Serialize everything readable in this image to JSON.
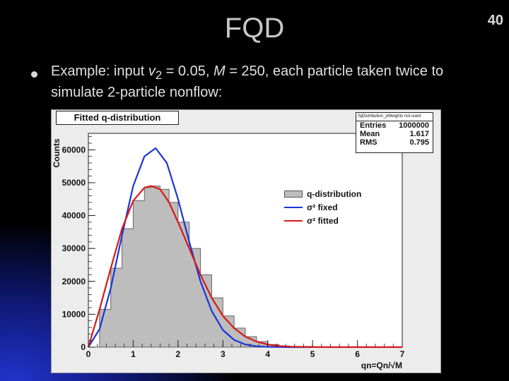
{
  "slide": {
    "title": "FQD",
    "page_number": "40",
    "bullet": {
      "prefix": "Example: input ",
      "var": "v",
      "sub": "2",
      "mid": " = 0.05, ",
      "var2": "M",
      "rest": " = 250, each particle taken twice to simulate 2-particle nonflow:"
    }
  },
  "chart_data": {
    "type": "area",
    "title": "Fitted q-distribution",
    "ylabel": "Counts",
    "xlabel": "qn=Qn/√M",
    "xlim": [
      0,
      7
    ],
    "ylim": [
      0,
      65000
    ],
    "x_ticks": [
      "0",
      "1",
      "2",
      "3",
      "4",
      "5",
      "6",
      "7"
    ],
    "y_ticks": [
      "0",
      "10000",
      "20000",
      "30000",
      "40000",
      "50000",
      "60000"
    ],
    "stats": {
      "header": "fqDistribution_pWeights not used",
      "rows": [
        {
          "k": "Entries",
          "v": "1000000"
        },
        {
          "k": "Mean",
          "v": "1.617"
        },
        {
          "k": "RMS",
          "v": "0.795"
        }
      ]
    },
    "legend_position": "center-right",
    "series": [
      {
        "name": "q-distribution",
        "color": "#bdbdbd",
        "x": [
          0,
          0.25,
          0.5,
          0.75,
          1.0,
          1.25,
          1.4,
          1.6,
          1.8,
          2.0,
          2.25,
          2.5,
          2.75,
          3.0,
          3.25,
          3.5,
          3.75,
          4.0,
          4.25,
          4.5,
          5.0,
          5.5,
          6.0,
          7.0
        ],
        "values": [
          0,
          11500,
          24000,
          36000,
          44500,
          48500,
          49000,
          48000,
          44000,
          38000,
          30000,
          22000,
          15000,
          9500,
          5800,
          3200,
          1700,
          800,
          350,
          150,
          20,
          0,
          0,
          0
        ]
      },
      {
        "name": "σ² fixed",
        "color": "#1a35d8",
        "x": [
          0,
          0.25,
          0.5,
          0.75,
          1.0,
          1.25,
          1.5,
          1.75,
          2.0,
          2.25,
          2.5,
          2.75,
          3.0,
          3.25,
          3.5,
          3.75,
          4.0,
          4.5,
          5.0
        ],
        "values": [
          0,
          5500,
          18000,
          34000,
          49000,
          58000,
          60500,
          56000,
          45000,
          32000,
          20000,
          11000,
          5200,
          2200,
          800,
          260,
          70,
          5,
          0
        ]
      },
      {
        "name": "σ² fitted",
        "color": "#d81818",
        "x": [
          0,
          0.25,
          0.5,
          0.75,
          1.0,
          1.25,
          1.4,
          1.6,
          1.8,
          2.0,
          2.25,
          2.5,
          2.75,
          3.0,
          3.25,
          3.5,
          3.75,
          4.0,
          4.25,
          4.5,
          5.0,
          5.5,
          6.0,
          7.0
        ],
        "values": [
          0,
          11500,
          24000,
          36000,
          44500,
          48500,
          49000,
          48000,
          44000,
          38000,
          30000,
          22000,
          15000,
          9500,
          5800,
          3200,
          1700,
          800,
          350,
          150,
          20,
          0,
          0,
          0
        ]
      }
    ]
  },
  "colors": {
    "frame_bg": "#ececec",
    "slide_bg": "#000000",
    "accent_blue": "#1a35d8",
    "accent_red": "#d81818"
  }
}
